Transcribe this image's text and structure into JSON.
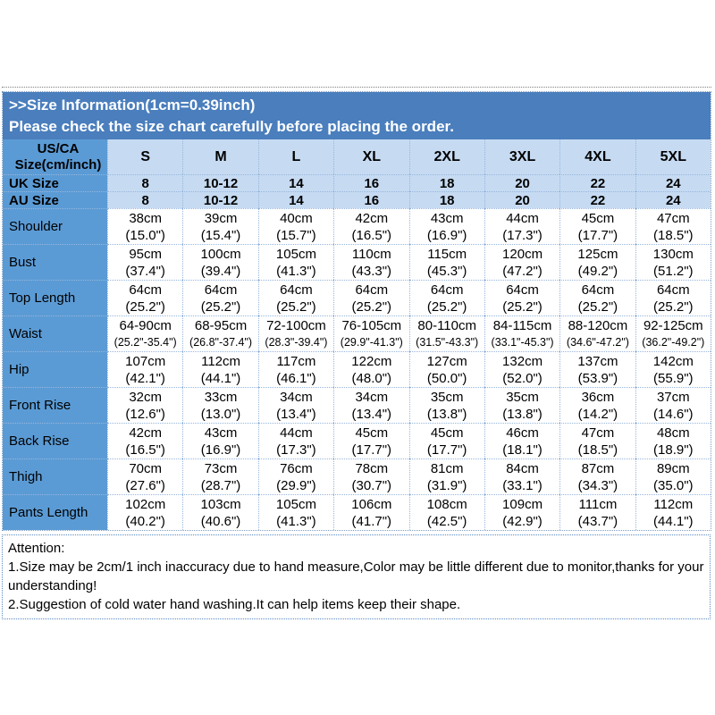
{
  "title_bar": {
    "bg": "#4a7ebd",
    "line1": ">>Size Information(1cm=0.39inch)",
    "line2": "Please check the size chart carefully before placing the order."
  },
  "size_table": {
    "corner_lines": [
      "US/CA",
      "Size(cm/inch)"
    ],
    "columns": [
      "S",
      "M",
      "L",
      "XL",
      "2XL",
      "3XL",
      "4XL",
      "5XL"
    ],
    "size_rows": [
      {
        "label": "UK Size",
        "values": [
          "8",
          "10-12",
          "14",
          "16",
          "18",
          "20",
          "22",
          "24"
        ]
      },
      {
        "label": "AU Size",
        "values": [
          "8",
          "10-12",
          "14",
          "16",
          "18",
          "20",
          "22",
          "24"
        ]
      }
    ],
    "measurement_rows": [
      {
        "label": "Shoulder",
        "small": false,
        "values": [
          [
            "38cm",
            "(15.0\")"
          ],
          [
            "39cm",
            "(15.4\")"
          ],
          [
            "40cm",
            "(15.7\")"
          ],
          [
            "42cm",
            "(16.5\")"
          ],
          [
            "43cm",
            "(16.9\")"
          ],
          [
            "44cm",
            "(17.3\")"
          ],
          [
            "45cm",
            "(17.7\")"
          ],
          [
            "47cm",
            "(18.5\")"
          ]
        ]
      },
      {
        "label": "Bust",
        "small": false,
        "values": [
          [
            "95cm",
            "(37.4\")"
          ],
          [
            "100cm",
            "(39.4\")"
          ],
          [
            "105cm",
            "(41.3\")"
          ],
          [
            "110cm",
            "(43.3\")"
          ],
          [
            "115cm",
            "(45.3\")"
          ],
          [
            "120cm",
            "(47.2\")"
          ],
          [
            "125cm",
            "(49.2\")"
          ],
          [
            "130cm",
            "(51.2\")"
          ]
        ]
      },
      {
        "label": "Top Length",
        "small": false,
        "values": [
          [
            "64cm",
            "(25.2\")"
          ],
          [
            "64cm",
            "(25.2\")"
          ],
          [
            "64cm",
            "(25.2\")"
          ],
          [
            "64cm",
            "(25.2\")"
          ],
          [
            "64cm",
            "(25.2\")"
          ],
          [
            "64cm",
            "(25.2\")"
          ],
          [
            "64cm",
            "(25.2\")"
          ],
          [
            "64cm",
            "(25.2\")"
          ]
        ]
      },
      {
        "label": "Waist",
        "small": true,
        "values": [
          [
            "64-90cm",
            "(25.2\"-35.4\")"
          ],
          [
            "68-95cm",
            "(26.8\"-37.4\")"
          ],
          [
            "72-100cm",
            "(28.3\"-39.4\")"
          ],
          [
            "76-105cm",
            "(29.9\"-41.3\")"
          ],
          [
            "80-110cm",
            "(31.5\"-43.3\")"
          ],
          [
            "84-115cm",
            "(33.1\"-45.3\")"
          ],
          [
            "88-120cm",
            "(34.6\"-47.2\")"
          ],
          [
            "92-125cm",
            "(36.2\"-49.2\")"
          ]
        ]
      },
      {
        "label": "Hip",
        "small": false,
        "values": [
          [
            "107cm",
            "(42.1\")"
          ],
          [
            "112cm",
            "(44.1\")"
          ],
          [
            "117cm",
            "(46.1\")"
          ],
          [
            "122cm",
            "(48.0\")"
          ],
          [
            "127cm",
            "(50.0\")"
          ],
          [
            "132cm",
            "(52.0\")"
          ],
          [
            "137cm",
            "(53.9\")"
          ],
          [
            "142cm",
            "(55.9\")"
          ]
        ]
      },
      {
        "label": "Front Rise",
        "small": false,
        "values": [
          [
            "32cm",
            "(12.6\")"
          ],
          [
            "33cm",
            "(13.0\")"
          ],
          [
            "34cm",
            "(13.4\")"
          ],
          [
            "34cm",
            "(13.4\")"
          ],
          [
            "35cm",
            "(13.8\")"
          ],
          [
            "35cm",
            "(13.8\")"
          ],
          [
            "36cm",
            "(14.2\")"
          ],
          [
            "37cm",
            "(14.6\")"
          ]
        ]
      },
      {
        "label": "Back Rise",
        "small": false,
        "values": [
          [
            "42cm",
            "(16.5\")"
          ],
          [
            "43cm",
            "(16.9\")"
          ],
          [
            "44cm",
            "(17.3\")"
          ],
          [
            "45cm",
            "(17.7\")"
          ],
          [
            "45cm",
            "(17.7\")"
          ],
          [
            "46cm",
            "(18.1\")"
          ],
          [
            "47cm",
            "(18.5\")"
          ],
          [
            "48cm",
            "(18.9\")"
          ]
        ]
      },
      {
        "label": "Thigh",
        "small": false,
        "values": [
          [
            "70cm",
            "(27.6\")"
          ],
          [
            "73cm",
            "(28.7\")"
          ],
          [
            "76cm",
            "(29.9\")"
          ],
          [
            "78cm",
            "(30.7\")"
          ],
          [
            "81cm",
            "(31.9\")"
          ],
          [
            "84cm",
            "(33.1\")"
          ],
          [
            "87cm",
            "(34.3\")"
          ],
          [
            "89cm",
            "(35.0\")"
          ]
        ]
      },
      {
        "label": "Pants Length",
        "small": false,
        "values": [
          [
            "102cm",
            "(40.2\")"
          ],
          [
            "103cm",
            "(40.6\")"
          ],
          [
            "105cm",
            "(41.3\")"
          ],
          [
            "106cm",
            "(41.7\")"
          ],
          [
            "108cm",
            "(42.5\")"
          ],
          [
            "109cm",
            "(42.9\")"
          ],
          [
            "111cm",
            "(43.7\")"
          ],
          [
            "112cm",
            "(44.1\")"
          ]
        ]
      }
    ]
  },
  "attention": {
    "lines": [
      "Attention:",
      "1.Size may be 2cm/1 inch inaccuracy due to hand measure,Color may be little different due to monitor,thanks for your",
      "understanding!",
      "2.Suggestion of cold water hand washing.It can help items keep their shape."
    ]
  },
  "colors": {
    "title_band": "#4a7ebd",
    "header_row": "#c6dbf2",
    "label_column": "#5b9bd5",
    "grid_border": "#97b6dd"
  }
}
